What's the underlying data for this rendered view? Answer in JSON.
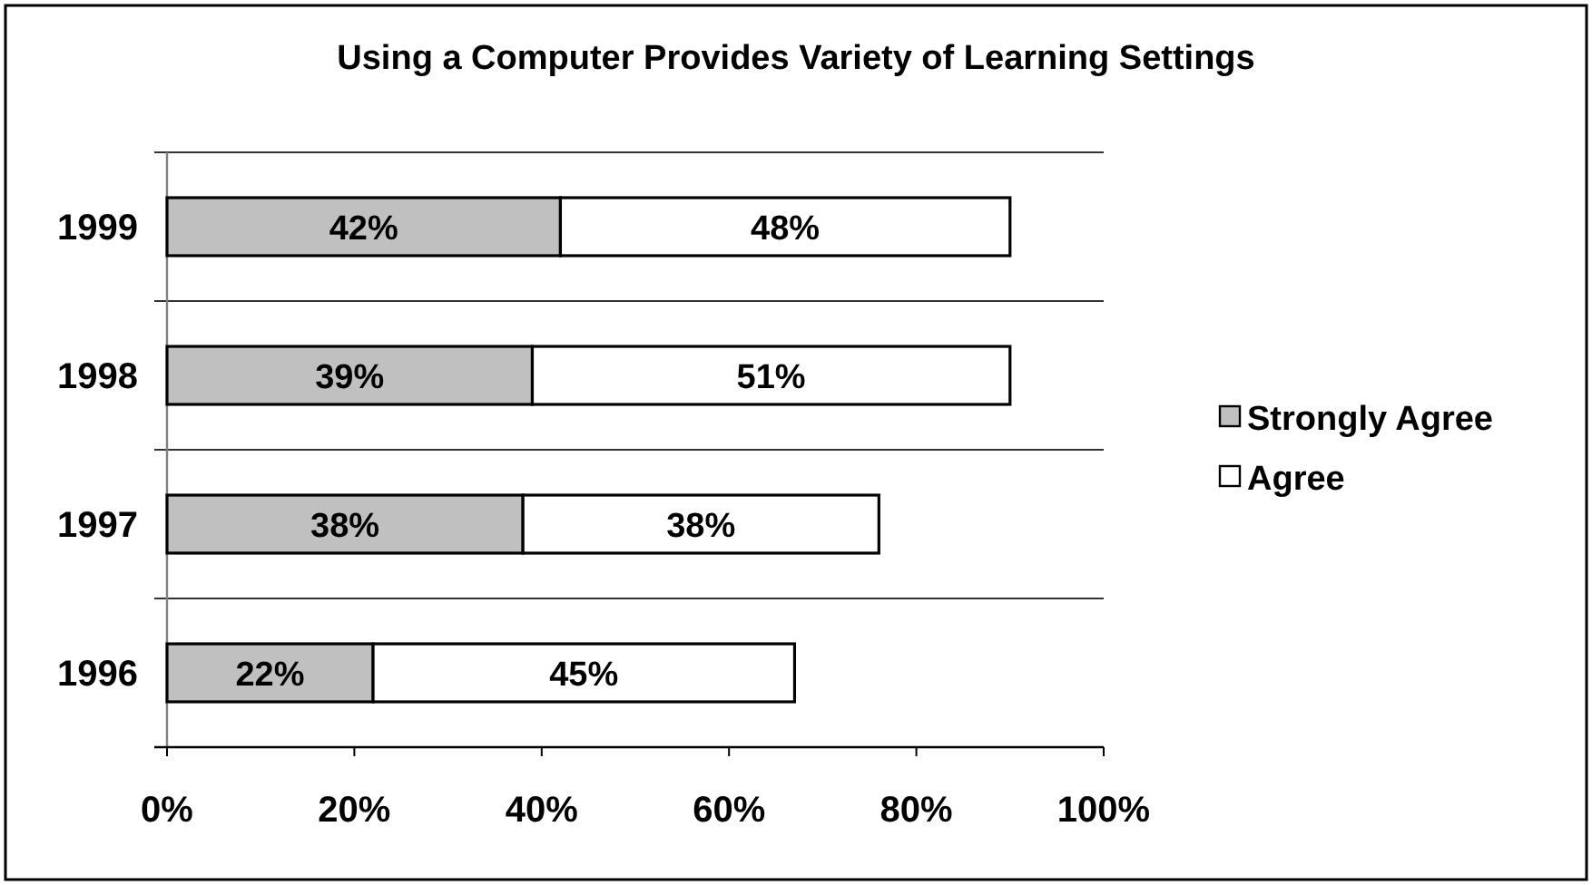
{
  "chart_data": {
    "type": "bar",
    "title": "Using a Computer Provides Variety of Learning Settings",
    "orientation": "horizontal",
    "stacked": true,
    "categories": [
      "1999",
      "1998",
      "1997",
      "1996"
    ],
    "series": [
      {
        "name": "Strongly Agree",
        "color": "#c0c0c0",
        "values": [
          42,
          39,
          38,
          22
        ],
        "value_labels": [
          "42%",
          "39%",
          "38%",
          "22%"
        ]
      },
      {
        "name": "Agree",
        "color": "#ffffff",
        "values": [
          48,
          51,
          38,
          45
        ],
        "value_labels": [
          "48%",
          "51%",
          "38%",
          "45%"
        ]
      }
    ],
    "xlim": [
      0,
      100
    ],
    "xticks": [
      {
        "value": 0,
        "label": "0%"
      },
      {
        "value": 20,
        "label": "20%"
      },
      {
        "value": 40,
        "label": "40%"
      },
      {
        "value": 60,
        "label": "60%"
      },
      {
        "value": 80,
        "label": "80%"
      },
      {
        "value": 100,
        "label": "100%"
      }
    ],
    "grid": "y",
    "legend": "right"
  }
}
